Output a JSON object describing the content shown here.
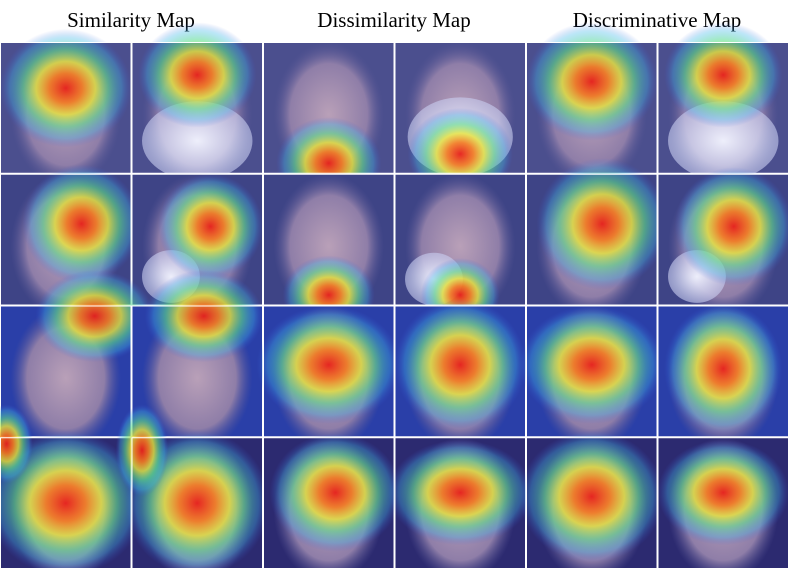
{
  "headers": [
    "Similarity Map",
    "Dissimilarity Map",
    "Discriminative Map"
  ]
}
